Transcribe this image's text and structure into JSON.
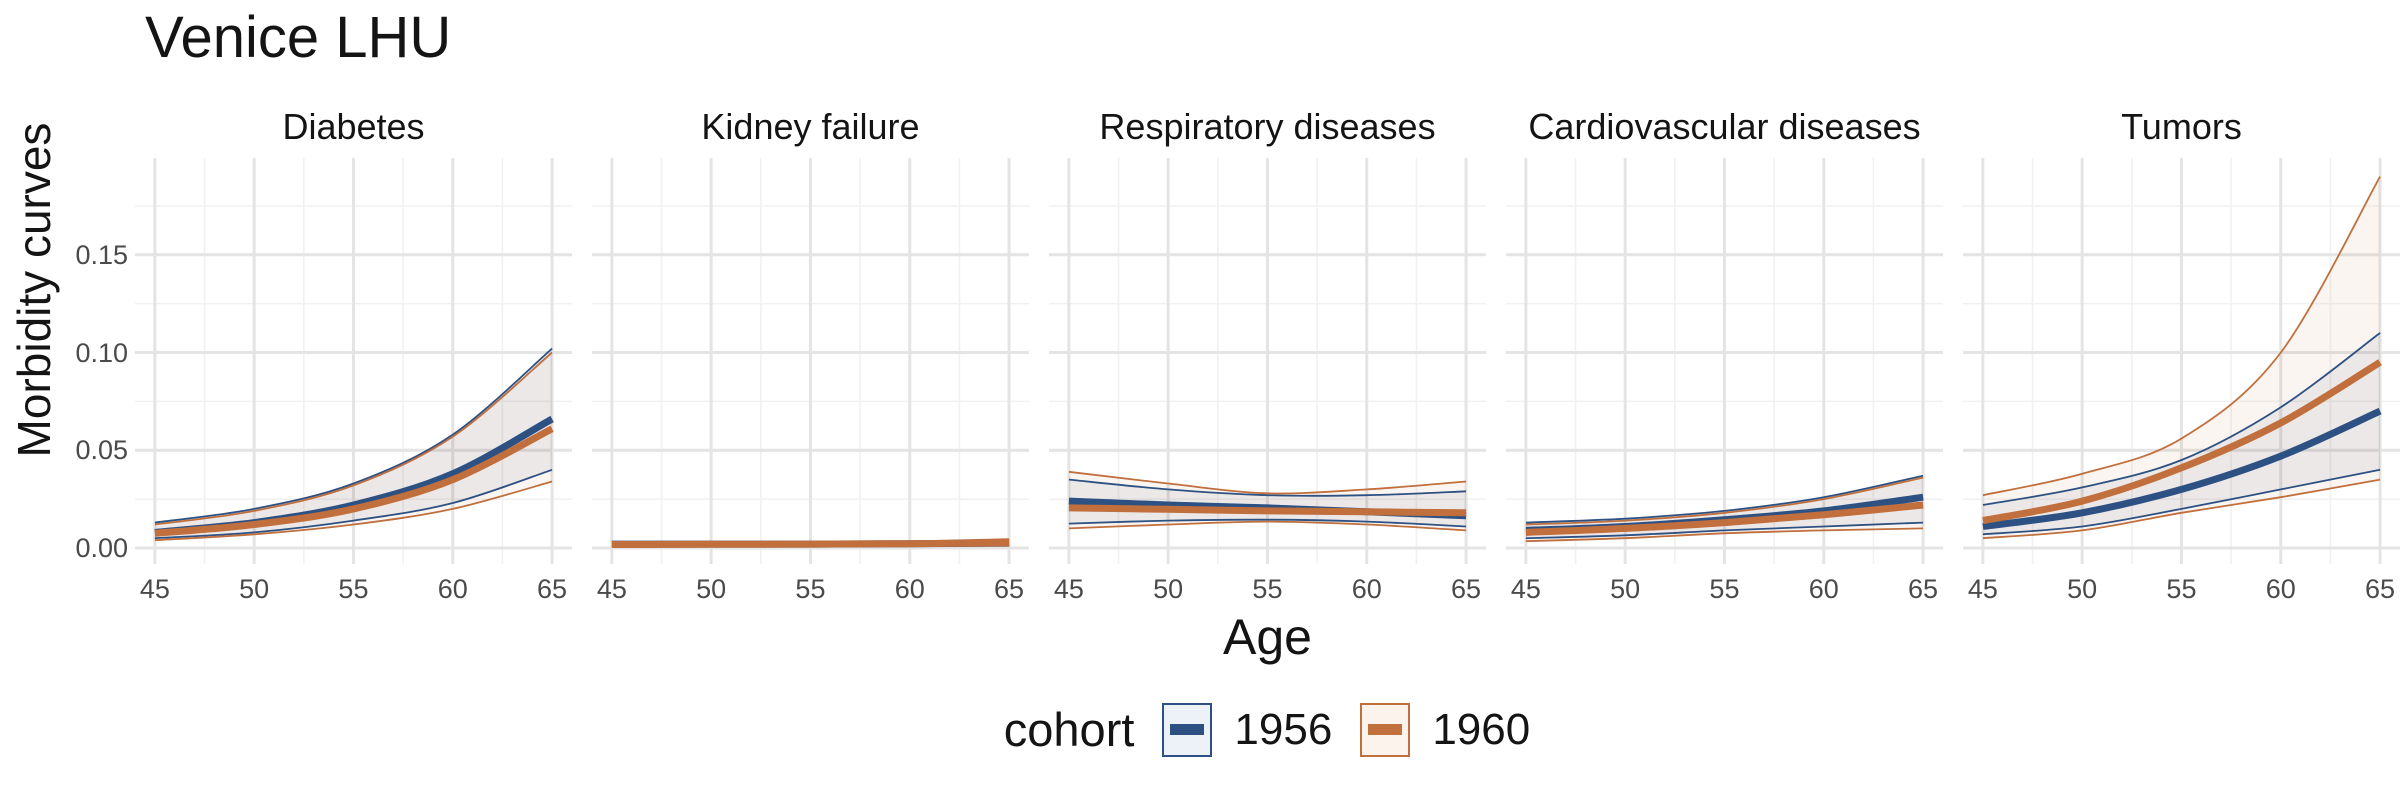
{
  "title": "Venice LHU",
  "y_axis": {
    "label": "Morbidity curves",
    "tick_labels": [
      "0.15",
      "0.10",
      "0.05",
      "0.00"
    ],
    "tick_values": [
      0.15,
      0.1,
      0.05,
      0.0
    ]
  },
  "x_axis": {
    "label": "Age",
    "tick_values": [
      45,
      50,
      55,
      60,
      65
    ]
  },
  "legend": {
    "title": "cohort",
    "items": [
      {
        "label": "1956",
        "color": "#2d5183",
        "swatch_fill": "#edf2f9"
      },
      {
        "label": "1960",
        "color": "#c06f3d",
        "swatch_fill": "#fcf3ec"
      }
    ]
  },
  "colors": {
    "blue": "#2d5183",
    "orange": "#c06f3d",
    "blue_band": "rgba(45,81,131,0.08)",
    "orange_band": "rgba(192,111,61,0.07)",
    "grid_major": "#e4e4e4",
    "grid_minor": "#f1f1f1",
    "tick_text": "#4a4a4a"
  },
  "chart_data": {
    "type": "line",
    "x": [
      45,
      50,
      55,
      60,
      65
    ],
    "xlabel": "Age",
    "ylabel": "Morbidity curves",
    "xlim": [
      45,
      65
    ],
    "ylim": [
      0,
      0.199
    ],
    "y_major_ticks": [
      0,
      0.05,
      0.1,
      0.15
    ],
    "grid": "on",
    "legend_position": "bottom",
    "facets": [
      {
        "label": "Diabetes",
        "series": [
          {
            "name": "1956",
            "color": "#2d5183",
            "values": [
              0.008,
              0.013,
              0.022,
              0.038,
              0.066
            ],
            "upper": [
              0.013,
              0.02,
              0.033,
              0.058,
              0.102
            ],
            "lower": [
              0.005,
              0.008,
              0.014,
              0.023,
              0.04
            ]
          },
          {
            "name": "1960",
            "color": "#c06f3d",
            "values": [
              0.0075,
              0.012,
              0.02,
              0.035,
              0.061
            ],
            "upper": [
              0.012,
              0.019,
              0.032,
              0.057,
              0.1
            ],
            "lower": [
              0.004,
              0.007,
              0.012,
              0.02,
              0.034
            ]
          }
        ]
      },
      {
        "label": "Kidney failure",
        "series": [
          {
            "name": "1956",
            "color": "#2d5183",
            "values": [
              0.002,
              0.002,
              0.002,
              0.0022,
              0.0025
            ],
            "upper": [
              0.003,
              0.003,
              0.003,
              0.0033,
              0.004
            ],
            "lower": [
              0.001,
              0.0012,
              0.0013,
              0.0013,
              0.0014
            ]
          },
          {
            "name": "1960",
            "color": "#c06f3d",
            "values": [
              0.0018,
              0.0019,
              0.002,
              0.0022,
              0.0026
            ],
            "upper": [
              0.0028,
              0.0028,
              0.003,
              0.0034,
              0.0045
            ],
            "lower": [
              0.0009,
              0.001,
              0.0012,
              0.0012,
              0.0012
            ]
          }
        ]
      },
      {
        "label": "Respiratory diseases",
        "series": [
          {
            "name": "1956",
            "color": "#2d5183",
            "values": [
              0.024,
              0.022,
              0.0205,
              0.0185,
              0.0165
            ],
            "upper": [
              0.035,
              0.03,
              0.027,
              0.027,
              0.029
            ],
            "lower": [
              0.0125,
              0.014,
              0.0145,
              0.0135,
              0.011
            ]
          },
          {
            "name": "1960",
            "color": "#c06f3d",
            "values": [
              0.0205,
              0.0198,
              0.019,
              0.0185,
              0.018
            ],
            "upper": [
              0.039,
              0.033,
              0.028,
              0.03,
              0.034
            ],
            "lower": [
              0.01,
              0.012,
              0.0135,
              0.012,
              0.009
            ]
          }
        ]
      },
      {
        "label": "Cardiovascular diseases",
        "series": [
          {
            "name": "1956",
            "color": "#2d5183",
            "values": [
              0.009,
              0.011,
              0.0145,
              0.019,
              0.026
            ],
            "upper": [
              0.013,
              0.015,
              0.019,
              0.026,
              0.037
            ],
            "lower": [
              0.005,
              0.0065,
              0.009,
              0.011,
              0.013
            ]
          },
          {
            "name": "1960",
            "color": "#c06f3d",
            "values": [
              0.008,
              0.01,
              0.013,
              0.017,
              0.022
            ],
            "upper": [
              0.012,
              0.014,
              0.018,
              0.025,
              0.036
            ],
            "lower": [
              0.0035,
              0.005,
              0.0075,
              0.009,
              0.01
            ]
          }
        ]
      },
      {
        "label": "Tumors",
        "series": [
          {
            "name": "1956",
            "color": "#2d5183",
            "values": [
              0.011,
              0.018,
              0.03,
              0.047,
              0.07
            ],
            "upper": [
              0.022,
              0.031,
              0.045,
              0.072,
              0.11
            ],
            "lower": [
              0.007,
              0.011,
              0.02,
              0.03,
              0.04
            ]
          },
          {
            "name": "1960",
            "color": "#c06f3d",
            "values": [
              0.014,
              0.024,
              0.041,
              0.064,
              0.095
            ],
            "upper": [
              0.027,
              0.038,
              0.056,
              0.1,
              0.19
            ],
            "lower": [
              0.005,
              0.009,
              0.018,
              0.026,
              0.035
            ]
          }
        ]
      }
    ]
  }
}
